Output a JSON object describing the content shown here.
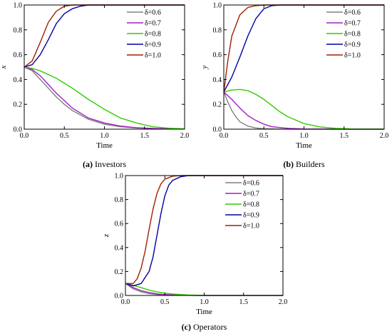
{
  "chart_data": [
    {
      "type": "line",
      "caption_letter": "(a)",
      "caption_text": "Investors",
      "xlabel": "Time",
      "ylabel": "x",
      "xlim": [
        0,
        2
      ],
      "ylim": [
        0,
        1
      ],
      "xticks": [
        "0.0",
        "0.5",
        "1.0",
        "1.5",
        "2.0"
      ],
      "yticks": [
        "0.0",
        "0.2",
        "0.4",
        "0.6",
        "0.8",
        "1.0"
      ],
      "legend": "top-right",
      "series": [
        {
          "name": "δ=0.6",
          "color": "#808080",
          "x": [
            0,
            0.1,
            0.2,
            0.3,
            0.4,
            0.5,
            0.6,
            0.8,
            1.0,
            1.2,
            1.4,
            1.6,
            1.8,
            2.0
          ],
          "y": [
            0.5,
            0.47,
            0.4,
            0.33,
            0.26,
            0.2,
            0.15,
            0.08,
            0.04,
            0.02,
            0.01,
            0.005,
            0.002,
            0.001
          ]
        },
        {
          "name": "δ=0.7",
          "color": "#a020c0",
          "x": [
            0,
            0.1,
            0.2,
            0.3,
            0.4,
            0.5,
            0.6,
            0.8,
            1.0,
            1.2,
            1.4,
            1.6,
            1.8,
            2.0
          ],
          "y": [
            0.5,
            0.48,
            0.43,
            0.36,
            0.29,
            0.23,
            0.17,
            0.09,
            0.05,
            0.025,
            0.012,
            0.006,
            0.003,
            0.001
          ]
        },
        {
          "name": "δ=0.8",
          "color": "#33cc00",
          "x": [
            0,
            0.1,
            0.2,
            0.3,
            0.4,
            0.5,
            0.6,
            0.8,
            1.0,
            1.2,
            1.4,
            1.6,
            1.8,
            2.0
          ],
          "y": [
            0.5,
            0.49,
            0.47,
            0.44,
            0.41,
            0.37,
            0.33,
            0.24,
            0.16,
            0.09,
            0.05,
            0.02,
            0.008,
            0.003
          ]
        },
        {
          "name": "δ=0.9",
          "color": "#0000a0",
          "x": [
            0,
            0.1,
            0.2,
            0.3,
            0.4,
            0.5,
            0.6,
            0.7,
            0.8,
            1.0,
            1.5,
            2.0
          ],
          "y": [
            0.5,
            0.52,
            0.6,
            0.72,
            0.85,
            0.93,
            0.97,
            0.99,
            1.0,
            1.0,
            1.0,
            1.0
          ]
        },
        {
          "name": "δ=1.0",
          "color": "#a02000",
          "x": [
            0,
            0.1,
            0.2,
            0.3,
            0.4,
            0.5,
            0.6,
            0.7,
            1.0,
            1.5,
            2.0
          ],
          "y": [
            0.5,
            0.55,
            0.7,
            0.86,
            0.95,
            0.99,
            1.0,
            1.0,
            1.0,
            1.0,
            1.0
          ]
        }
      ]
    },
    {
      "type": "line",
      "caption_letter": "(b)",
      "caption_text": "Builders",
      "xlabel": "Time",
      "ylabel": "y",
      "xlim": [
        0,
        2
      ],
      "ylim": [
        0,
        1
      ],
      "xticks": [
        "0.0",
        "0.5",
        "1.0",
        "1.5",
        "2.0"
      ],
      "yticks": [
        "0.0",
        "0.2",
        "0.4",
        "0.6",
        "0.8",
        "1.0"
      ],
      "legend": "top-right",
      "series": [
        {
          "name": "δ=0.6",
          "color": "#808080",
          "x": [
            0,
            0.05,
            0.1,
            0.15,
            0.2,
            0.3,
            0.4,
            0.5,
            0.7,
            1.0,
            1.5,
            2.0
          ],
          "y": [
            0.3,
            0.22,
            0.15,
            0.1,
            0.06,
            0.025,
            0.01,
            0.004,
            0.001,
            0,
            0,
            0
          ]
        },
        {
          "name": "δ=0.7",
          "color": "#a020c0",
          "x": [
            0,
            0.1,
            0.2,
            0.3,
            0.4,
            0.5,
            0.6,
            0.8,
            1.0,
            1.5,
            2.0
          ],
          "y": [
            0.3,
            0.24,
            0.17,
            0.11,
            0.07,
            0.04,
            0.02,
            0.007,
            0.002,
            0,
            0
          ]
        },
        {
          "name": "δ=0.8",
          "color": "#33cc00",
          "x": [
            0,
            0.1,
            0.2,
            0.3,
            0.4,
            0.5,
            0.6,
            0.7,
            0.8,
            1.0,
            1.2,
            1.4,
            1.6,
            2.0
          ],
          "y": [
            0.3,
            0.315,
            0.32,
            0.31,
            0.28,
            0.24,
            0.19,
            0.14,
            0.1,
            0.045,
            0.018,
            0.007,
            0.002,
            0
          ]
        },
        {
          "name": "δ=0.9",
          "color": "#0000a0",
          "x": [
            0,
            0.1,
            0.2,
            0.3,
            0.4,
            0.5,
            0.6,
            0.7,
            1.0,
            1.5,
            2.0
          ],
          "y": [
            0.3,
            0.42,
            0.58,
            0.75,
            0.89,
            0.97,
            0.995,
            1.0,
            1.0,
            1.0,
            1.0
          ]
        },
        {
          "name": "δ=1.0",
          "color": "#a02000",
          "x": [
            0,
            0.05,
            0.1,
            0.2,
            0.3,
            0.4,
            0.5,
            1.0,
            1.5,
            2.0
          ],
          "y": [
            0.3,
            0.55,
            0.75,
            0.92,
            0.98,
            0.995,
            1.0,
            1.0,
            1.0,
            1.0
          ]
        }
      ]
    },
    {
      "type": "line",
      "caption_letter": "(c)",
      "caption_text": "Operators",
      "xlabel": "Time",
      "ylabel": "z",
      "xlim": [
        0,
        2
      ],
      "ylim": [
        0,
        1
      ],
      "xticks": [
        "0.0",
        "0.5",
        "1.0",
        "1.5",
        "2.0"
      ],
      "yticks": [
        "0.0",
        "0.2",
        "0.4",
        "0.6",
        "0.8",
        "1.0"
      ],
      "legend": "top-right",
      "series": [
        {
          "name": "δ=0.6",
          "color": "#808080",
          "x": [
            0,
            0.1,
            0.2,
            0.3,
            0.4,
            0.5,
            0.7,
            1.0,
            2.0
          ],
          "y": [
            0.1,
            0.055,
            0.03,
            0.015,
            0.008,
            0.004,
            0.001,
            0,
            0
          ]
        },
        {
          "name": "δ=0.7",
          "color": "#a020c0",
          "x": [
            0,
            0.1,
            0.2,
            0.3,
            0.4,
            0.5,
            0.7,
            1.0,
            2.0
          ],
          "y": [
            0.1,
            0.065,
            0.04,
            0.025,
            0.014,
            0.008,
            0.002,
            0,
            0
          ]
        },
        {
          "name": "δ=0.8",
          "color": "#33cc00",
          "x": [
            0,
            0.1,
            0.2,
            0.3,
            0.4,
            0.5,
            0.6,
            0.8,
            1.0,
            2.0
          ],
          "y": [
            0.1,
            0.085,
            0.065,
            0.045,
            0.03,
            0.02,
            0.012,
            0.004,
            0.001,
            0
          ]
        },
        {
          "name": "δ=0.9",
          "color": "#0000a0",
          "x": [
            0,
            0.1,
            0.2,
            0.3,
            0.35,
            0.4,
            0.45,
            0.5,
            0.55,
            0.6,
            0.7,
            0.8,
            1.0,
            1.5,
            2.0
          ],
          "y": [
            0.1,
            0.08,
            0.1,
            0.2,
            0.32,
            0.5,
            0.68,
            0.83,
            0.92,
            0.96,
            0.99,
            1.0,
            1.0,
            1.0,
            1.0
          ]
        },
        {
          "name": "δ=1.0",
          "color": "#a02000",
          "x": [
            0,
            0.1,
            0.15,
            0.2,
            0.25,
            0.3,
            0.35,
            0.4,
            0.45,
            0.5,
            0.6,
            0.7,
            1.0,
            1.5,
            2.0
          ],
          "y": [
            0.1,
            0.1,
            0.14,
            0.23,
            0.37,
            0.55,
            0.72,
            0.85,
            0.93,
            0.97,
            0.995,
            1.0,
            1.0,
            1.0,
            1.0
          ]
        }
      ]
    }
  ]
}
